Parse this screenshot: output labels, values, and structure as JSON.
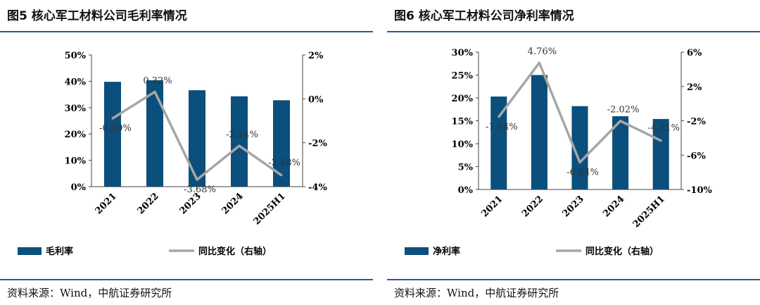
{
  "panels": [
    {
      "title": "图5  核心军工材料公司毛利率情况",
      "source": "资料来源：Wind，中航证券研究所",
      "legend": {
        "bar": "毛利率",
        "line": "同比变化（右轴）"
      }
    },
    {
      "title": "图6  核心军工材料公司净利率情况",
      "source": "资料来源：Wind，中航证券研究所",
      "legend": {
        "bar": "净利率",
        "line": "同比变化（右轴）"
      }
    }
  ],
  "colors": {
    "bar": "#0b4f7c",
    "line": "#a6a6a6",
    "rule": "#2f5592"
  },
  "chart_data": [
    {
      "type": "bar",
      "categories": [
        "2021",
        "2022",
        "2023",
        "2024",
        "2025H1"
      ],
      "series": [
        {
          "name": "毛利率",
          "axis": "left",
          "values": [
            39.8,
            40.4,
            36.6,
            34.3,
            32.8
          ]
        },
        {
          "name": "同比变化（右轴）",
          "axis": "right",
          "type": "line",
          "values": [
            -0.89,
            0.32,
            -3.68,
            -2.14,
            -3.48
          ]
        }
      ],
      "data_labels": [
        "-0.89%",
        "0.32%",
        "-3.68%",
        "-2.14%",
        "-3.48%"
      ],
      "ylim_left": [
        0,
        50
      ],
      "ylim_right": [
        -4,
        2
      ],
      "yticks_left": [
        "0%",
        "10%",
        "20%",
        "30%",
        "40%",
        "50%"
      ],
      "yticks_right": [
        "-4%",
        "-2%",
        "0%",
        "2%"
      ],
      "legend_position": "bottom",
      "grid": false
    },
    {
      "type": "bar",
      "categories": [
        "2021",
        "2022",
        "2023",
        "2024",
        "2025H1"
      ],
      "series": [
        {
          "name": "净利率",
          "axis": "left",
          "values": [
            20.3,
            25.0,
            18.2,
            16.0,
            15.4
          ]
        },
        {
          "name": "同比变化（右轴）",
          "axis": "right",
          "type": "line",
          "values": [
            -1.54,
            4.76,
            -6.84,
            -2.02,
            -4.31
          ]
        }
      ],
      "data_labels": [
        "-1.54%",
        "4.76%",
        "-6.84%",
        "-2.02%",
        "-4.31%"
      ],
      "ylim_left": [
        0,
        30
      ],
      "ylim_right": [
        -10,
        6
      ],
      "yticks_left": [
        "0%",
        "5%",
        "10%",
        "15%",
        "20%",
        "25%",
        "30%"
      ],
      "yticks_right": [
        "-10%",
        "-6%",
        "-2%",
        "2%",
        "6%"
      ],
      "legend_position": "bottom",
      "grid": false
    }
  ]
}
